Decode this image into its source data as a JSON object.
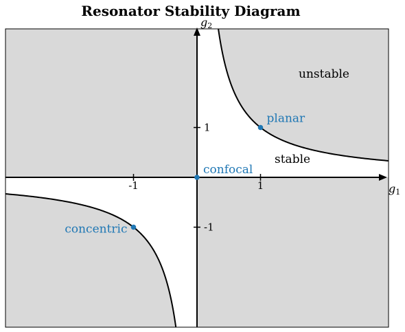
{
  "chart_data": {
    "type": "line",
    "title": "Resonator Stability Diagram",
    "xlabel": "g",
    "xlabel_sub": "1",
    "ylabel": "g",
    "ylabel_sub": "2",
    "xlim": [
      -3.0,
      3.0
    ],
    "ylim": [
      -3.0,
      3.0
    ],
    "ticks_x": [
      "-1",
      "1"
    ],
    "ticks_y": [
      "1",
      "-1"
    ],
    "boundary": "g1*g2 = 1",
    "region_labels": {
      "stable": "stable",
      "unstable": "unstable"
    },
    "points": [
      {
        "label": "confocal",
        "x": 0,
        "y": 0
      },
      {
        "label": "planar",
        "x": 1,
        "y": 1
      },
      {
        "label": "concentric",
        "x": -1,
        "y": -1
      }
    ],
    "colors": {
      "unstable_fill": "#d9d9d9",
      "stable_fill": "#ffffff",
      "curve": "#000000",
      "points": "#1f77b4"
    },
    "grid": false
  }
}
